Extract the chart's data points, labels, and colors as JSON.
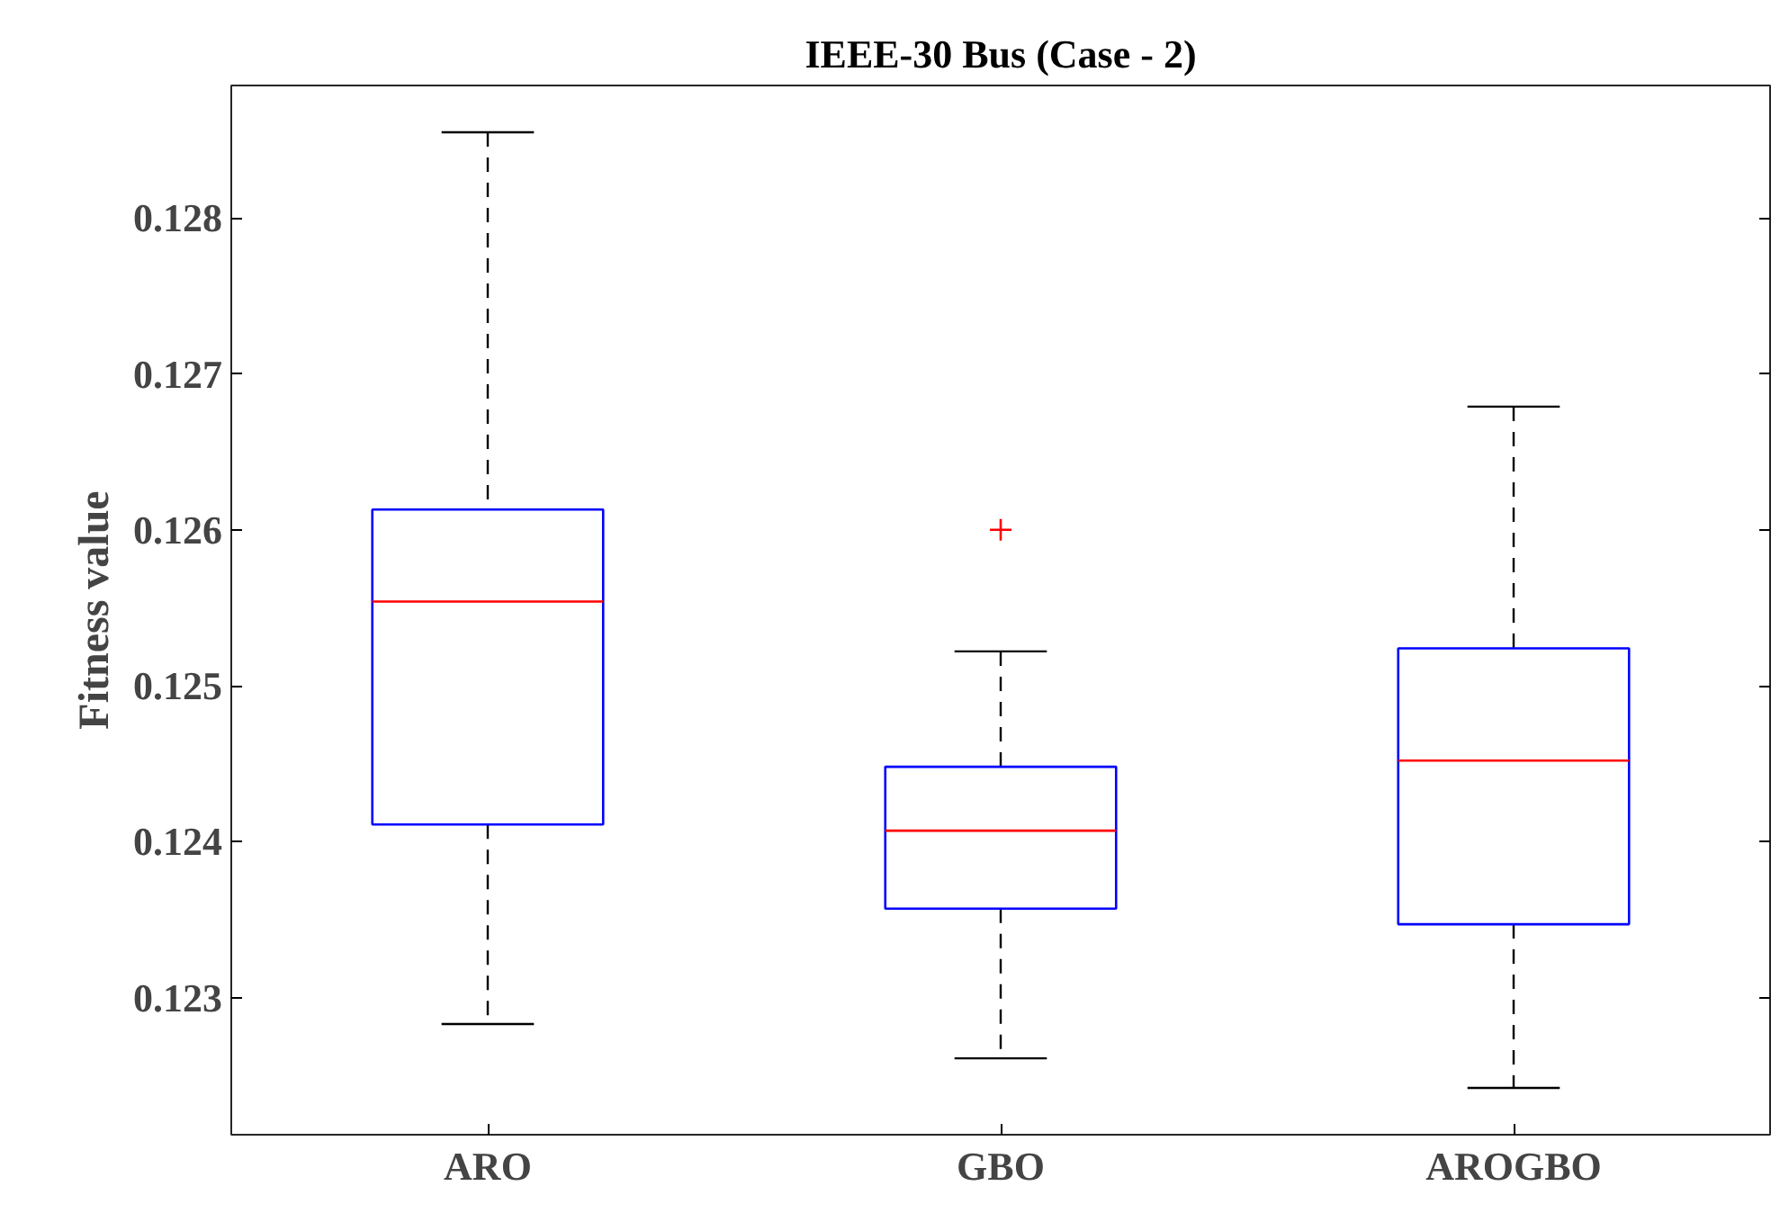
{
  "chart_data": {
    "type": "box",
    "title": "IEEE-30 Bus (Case - 2)",
    "ylabel": "Fitness value",
    "categories": [
      "ARO",
      "GBO",
      "AROGBO"
    ],
    "boxes": [
      {
        "low": 0.12283,
        "q1": 0.12411,
        "median": 0.12554,
        "q3": 0.12613,
        "high": 0.12855
      },
      {
        "low": 0.12261,
        "q1": 0.12357,
        "median": 0.12407,
        "q3": 0.12448,
        "high": 0.12522,
        "outliers": [
          0.126
        ]
      },
      {
        "low": 0.12242,
        "q1": 0.12347,
        "median": 0.12452,
        "q3": 0.12524,
        "high": 0.12679
      }
    ],
    "color": "#0000ff",
    "ylim": [
      0.12212,
      0.12885
    ],
    "yticks": [
      0.123,
      0.124,
      0.125,
      0.126,
      0.127,
      0.128
    ],
    "grid": false
  }
}
